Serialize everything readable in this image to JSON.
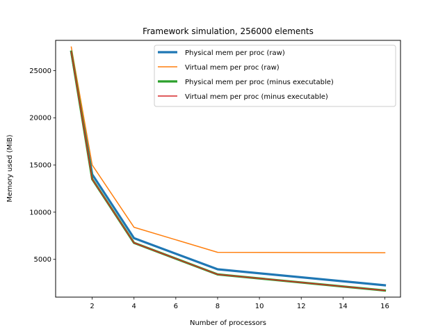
{
  "chart_data": {
    "type": "line",
    "title": "Framework simulation, 256000 elements",
    "xlabel": "Number of processors",
    "ylabel": "Memory used (MiB)",
    "xlim": [
      0.25,
      16.75
    ],
    "ylim": [
      1000,
      28200
    ],
    "xticks": [
      2,
      4,
      6,
      8,
      10,
      12,
      14,
      16
    ],
    "yticks": [
      5000,
      10000,
      15000,
      20000,
      25000
    ],
    "grid": false,
    "legend_position": "top-right",
    "series": [
      {
        "name": "Physical mem per proc (raw)",
        "color": "#1f77b4",
        "x": [
          1,
          2,
          4,
          8,
          16
        ],
        "y": [
          27000,
          14000,
          7250,
          3950,
          2250
        ]
      },
      {
        "name": "Virtual mem per proc (raw)",
        "color": "#ff7f0e",
        "x": [
          1,
          2,
          4,
          8,
          16
        ],
        "y": [
          27500,
          15000,
          8400,
          5750,
          5700
        ]
      },
      {
        "name": "Physical mem per proc (minus executable)",
        "color": "#2ca02c",
        "x": [
          1,
          2,
          4,
          8,
          16
        ],
        "y": [
          27000,
          13500,
          6750,
          3400,
          1700
        ]
      },
      {
        "name": "Virtual mem per proc (minus executable)",
        "color": "#d62728",
        "x": [
          1,
          2,
          4,
          8,
          16
        ],
        "y": [
          27000,
          13500,
          6750,
          3400,
          1700
        ]
      }
    ]
  }
}
